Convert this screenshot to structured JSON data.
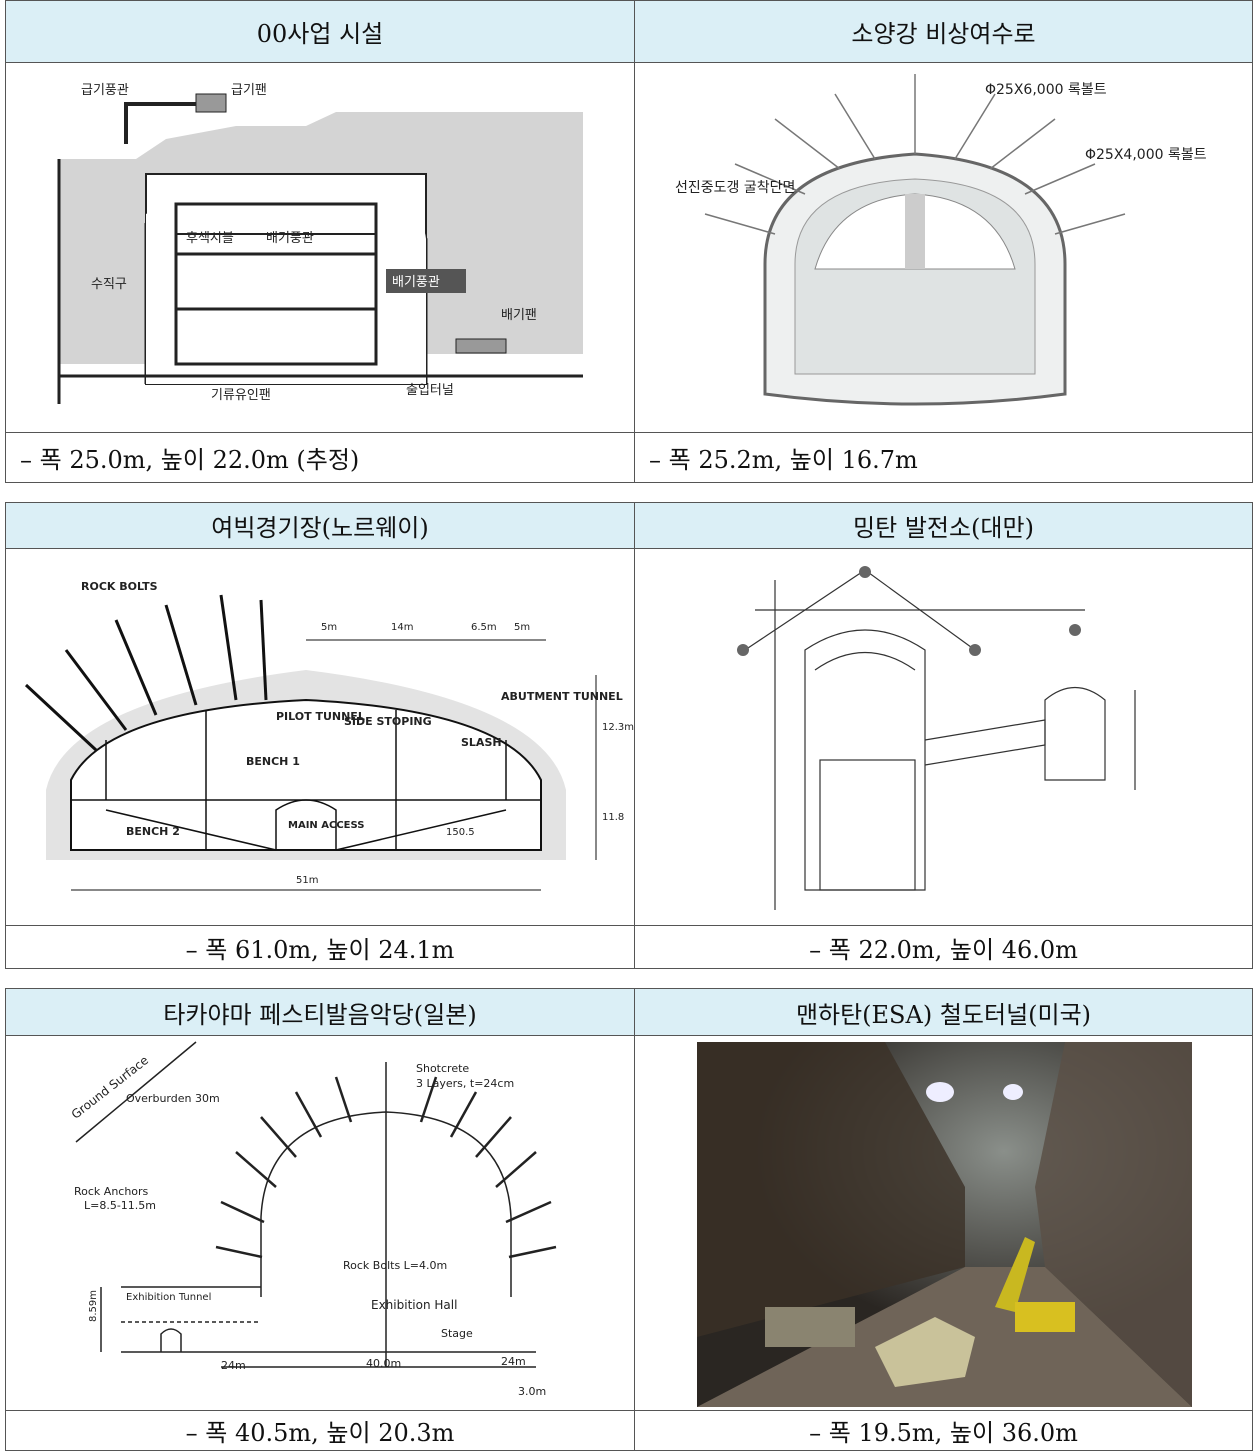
{
  "tables": [
    {
      "headers": [
        "00사업 시설",
        "소양강 비상여수로"
      ],
      "captions": [
        "– 폭 25.0m, 높이 22.0m (추정)",
        "– 폭 25.2m, 높이 16.7m"
      ],
      "figures": [
        {
          "labels": [
            "급기풍관",
            "급기팬",
            "후섹시블",
            "배기풍관",
            "배기풍관",
            "수직구",
            "배기팬",
            "기류유인팬",
            "출입터널"
          ]
        },
        {
          "labels": [
            "Φ25X6,000 록볼트",
            "Φ25X4,000 록볼트",
            "선진중도갱 굴착단면"
          ]
        }
      ]
    },
    {
      "headers": [
        "여빅경기장(노르웨이)",
        "밍탄 발전소(대만)"
      ],
      "captions": [
        "– 폭 61.0m, 높이 24.1m",
        "– 폭 22.0m, 높이 46.0m"
      ],
      "figures": [
        {
          "labels": [
            "ROCK BOLTS",
            "PILOT TUNNEL",
            "SIDE STOPING",
            "ABUTMENT TUNNEL",
            "BENCH 1",
            "BENCH 2",
            "MAIN ACCESS",
            "SLASH",
            "5m",
            "14m",
            "6.5m",
            "5m",
            "51m",
            "12.3m",
            "11.8",
            "150.5"
          ]
        },
        {
          "labels": []
        }
      ]
    },
    {
      "headers": [
        "타카야마 페스티발음악당(일본)",
        "맨하탄(ESA) 철도터널(미국)"
      ],
      "captions": [
        "– 폭 40.5m, 높이 20.3m",
        "– 폭 19.5m, 높이 36.0m"
      ],
      "figures": [
        {
          "labels": [
            "Ground Surface",
            "Overburden 30m",
            "Shotcrete",
            "3 Layers, t=24cm",
            "Rock Anchors",
            "L=8.5-11.5m",
            "Rock Bolts L=4.0m",
            "Exhibition Hall",
            "Exhibition Tunnel",
            "Stage",
            "8.59m",
            "40.0m",
            "24m",
            "24m",
            "3.0m"
          ]
        },
        {
          "labels": []
        }
      ]
    }
  ]
}
